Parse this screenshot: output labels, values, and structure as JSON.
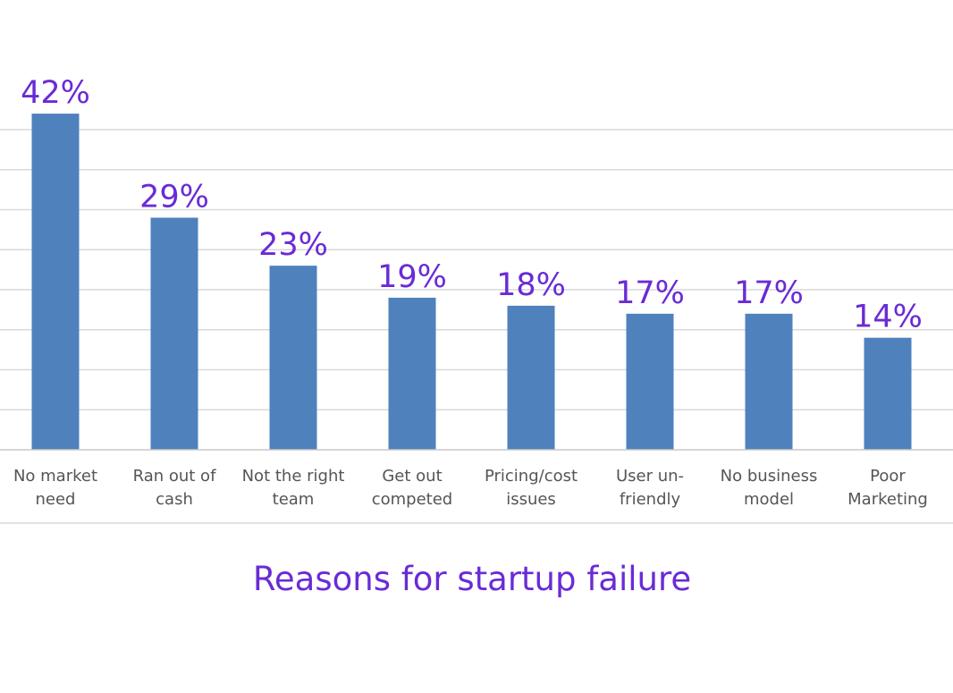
{
  "chart_data": {
    "type": "bar",
    "title": "Reasons for startup failure",
    "categories": [
      [
        "No market",
        "need"
      ],
      [
        "Ran out of",
        "cash"
      ],
      [
        "Not the right",
        "team"
      ],
      [
        "Get out",
        "competed"
      ],
      [
        "Pricing/cost",
        "issues"
      ],
      [
        "User un-",
        "friendly"
      ],
      [
        "No business",
        "model"
      ],
      [
        "Poor",
        "Marketing"
      ]
    ],
    "values": [
      42,
      29,
      23,
      19,
      18,
      17,
      17,
      14
    ],
    "data_labels": [
      "42%",
      "29%",
      "23%",
      "19%",
      "18%",
      "17%",
      "17%",
      "14%"
    ],
    "value_unit": "%",
    "xlabel": "",
    "ylabel": "",
    "ylim": [
      0,
      40
    ],
    "y_gridlines": [
      5,
      10,
      15,
      20,
      25,
      30,
      35,
      40
    ],
    "grid": true,
    "y_tick_labels_shown": false,
    "legend": "none",
    "colors": {
      "bar": "#4f81bd",
      "data_label": "#6a2bd6",
      "title": "#6a2bd6",
      "tick_label": "#555555",
      "grid": "#d9d9d9"
    }
  }
}
